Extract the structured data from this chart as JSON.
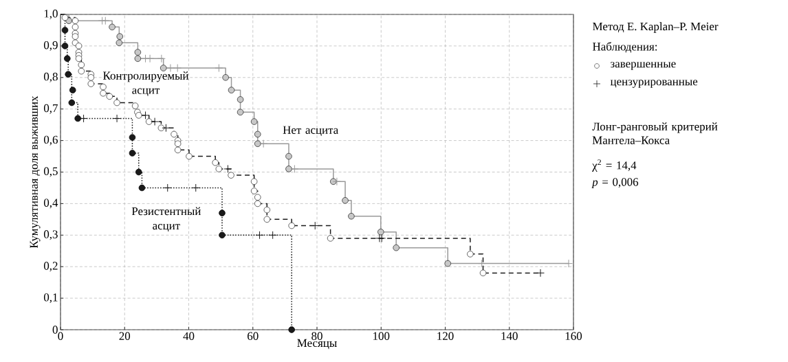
{
  "chart_data": {
    "type": "step",
    "xlabel": "Месяцы",
    "ylabel": "Кумулятивная доля выживших",
    "legend_title": "Наблюдения:",
    "xlim": [
      0,
      160
    ],
    "ylim": [
      0,
      1
    ],
    "xticks": [
      0,
      20,
      40,
      60,
      80,
      100,
      120,
      140,
      160
    ],
    "yticks": [
      0,
      {
        "value": 0.1,
        "label": "0,1"
      },
      {
        "value": 0.2,
        "label": "0,2"
      },
      {
        "value": 0.3,
        "label": "0,3"
      },
      {
        "value": 0.4,
        "label": "0,4"
      },
      {
        "value": 0.5,
        "label": "0,5"
      },
      {
        "value": 0.6,
        "label": "0,6"
      },
      {
        "value": 0.7,
        "label": "0,7"
      },
      {
        "value": 0.8,
        "label": "0,8"
      },
      {
        "value": 0.9,
        "label": "0,9"
      },
      {
        "value": 1.0,
        "label": "1,0"
      }
    ],
    "grid": true,
    "legend": "right",
    "series": [
      {
        "name": "Нет асцита",
        "color": "#999999",
        "line_style": "solid",
        "x": [
          0,
          2.6,
          13,
          14,
          16.1,
          18.3,
          24.1,
          26.5,
          27.9,
          31.5,
          32.1,
          34.3,
          36.5,
          49.4,
          51.5,
          53.3,
          56.1,
          60.4,
          61.5,
          63.3,
          71.2,
          73,
          85.1,
          86.2,
          88.8,
          90.7,
          99.9,
          104.7,
          120.8,
          131.4,
          158.5
        ],
        "values": [
          1.0,
          0.98,
          0.98,
          0.98,
          0.96,
          0.91,
          0.86,
          0.86,
          0.86,
          0.86,
          0.83,
          0.83,
          0.83,
          0.83,
          0.8,
          0.76,
          0.69,
          0.66,
          0.59,
          0.59,
          0.51,
          0.51,
          0.47,
          0.47,
          0.41,
          0.36,
          0.31,
          0.26,
          0.21,
          0.21,
          0.21
        ]
      },
      {
        "name": "Контролируемый асцит",
        "color": "#1a1a1a",
        "line_style": "dashed",
        "x": [
          0,
          1.4,
          4.6,
          5.7,
          6.5,
          9.5,
          13.3,
          15.3,
          17.6,
          23.3,
          24.0,
          24.4,
          26.5,
          27.6,
          29.4,
          31.4,
          32.9,
          35.4,
          36.6,
          40.1,
          48.3,
          49.4,
          52.2,
          53.2,
          60.4,
          61.5,
          64.4,
          72.1,
          79.4,
          84.2,
          99.5,
          100.2,
          127.8,
          131.8,
          149.7
        ],
        "values": [
          1.0,
          0.99,
          0.91,
          0.86,
          0.82,
          0.78,
          0.75,
          0.74,
          0.72,
          0.71,
          0.69,
          0.68,
          0.68,
          0.66,
          0.66,
          0.64,
          0.64,
          0.62,
          0.57,
          0.55,
          0.53,
          0.51,
          0.51,
          0.49,
          0.44,
          0.4,
          0.35,
          0.33,
          0.33,
          0.29,
          0.29,
          0.29,
          0.24,
          0.18,
          0.18
        ]
      },
      {
        "name": "Резистентный асцит",
        "color": "#1a1a1a",
        "line_style": "dotted",
        "x": [
          0,
          1.4,
          2.1,
          2.4,
          3.5,
          5.4,
          7.2,
          17.6,
          22.4,
          24.4,
          25.4,
          33.4,
          42.2,
          50.4,
          62.1,
          66.2,
          72.1
        ],
        "values": [
          1.0,
          0.9,
          0.86,
          0.81,
          0.72,
          0.67,
          0.67,
          0.67,
          0.56,
          0.5,
          0.45,
          0.45,
          0.45,
          0.3,
          0.3,
          0.3,
          0
        ]
      },
      {
        "type": "scatter",
        "name": "завершенные",
        "marker": "circle",
        "color": "#ffffff",
        "x": [
          2.6,
          16.1,
          18.5,
          18.3,
          24.1,
          24.1,
          32.1,
          51.5,
          53.3,
          56.1,
          56.1,
          60.4,
          61.5,
          61.5,
          71.2,
          71.2,
          85.1,
          88.8,
          90.7,
          99.9,
          104.7,
          120.8,
          1.4,
          4.6,
          4.6,
          4.6,
          4.6,
          4.6,
          5.7,
          5.7,
          5.7,
          5.7,
          6.5,
          6.5,
          9.5,
          9.5,
          9.5,
          13.3,
          13.3,
          15.3,
          17.6,
          23.3,
          24.0,
          24.4,
          27.6,
          31.4,
          35.4,
          36.6,
          36.6,
          36.6,
          40.1,
          48.3,
          49.4,
          53.2,
          60.4,
          60.4,
          61.5,
          61.5,
          64.4,
          64.4,
          72.1,
          84.2,
          127.8,
          131.8,
          1.4,
          1.4,
          2.1,
          2.4,
          3.8,
          3.5,
          5.4,
          22.4,
          22.4,
          24.4,
          25.4,
          50.4,
          50.4,
          72.1
        ],
        "values": [
          0.98,
          0.96,
          0.93,
          0.91,
          0.88,
          0.86,
          0.83,
          0.8,
          0.76,
          0.73,
          0.69,
          0.66,
          0.62,
          0.59,
          0.55,
          0.51,
          0.47,
          0.41,
          0.36,
          0.31,
          0.26,
          0.21,
          0.99,
          0.98,
          0.96,
          0.94,
          0.93,
          0.91,
          0.9,
          0.88,
          0.87,
          0.86,
          0.84,
          0.82,
          0.81,
          0.8,
          0.78,
          0.77,
          0.75,
          0.74,
          0.72,
          0.71,
          0.69,
          0.68,
          0.66,
          0.64,
          0.62,
          0.6,
          0.59,
          0.57,
          0.55,
          0.53,
          0.51,
          0.49,
          0.47,
          0.44,
          0.42,
          0.4,
          0.38,
          0.35,
          0.33,
          0.29,
          0.24,
          0.18,
          0.95,
          0.9,
          0.86,
          0.81,
          0.76,
          0.72,
          0.67,
          0.61,
          0.56,
          0.5,
          0.45,
          0.37,
          0.3,
          0
        ],
        "colors": [
          "#c8c8c8",
          "#c8c8c8",
          "#c8c8c8",
          "#c8c8c8",
          "#c8c8c8",
          "#c8c8c8",
          "#c8c8c8",
          "#c8c8c8",
          "#c8c8c8",
          "#c8c8c8",
          "#c8c8c8",
          "#c8c8c8",
          "#c8c8c8",
          "#c8c8c8",
          "#c8c8c8",
          "#c8c8c8",
          "#c8c8c8",
          "#c8c8c8",
          "#c8c8c8",
          "#c8c8c8",
          "#c8c8c8",
          "#c8c8c8",
          "#ffffff",
          "#ffffff",
          "#ffffff",
          "#ffffff",
          "#ffffff",
          "#ffffff",
          "#ffffff",
          "#ffffff",
          "#ffffff",
          "#ffffff",
          "#ffffff",
          "#ffffff",
          "#ffffff",
          "#ffffff",
          "#ffffff",
          "#ffffff",
          "#ffffff",
          "#ffffff",
          "#ffffff",
          "#ffffff",
          "#ffffff",
          "#ffffff",
          "#ffffff",
          "#ffffff",
          "#ffffff",
          "#ffffff",
          "#ffffff",
          "#ffffff",
          "#ffffff",
          "#ffffff",
          "#ffffff",
          "#ffffff",
          "#ffffff",
          "#ffffff",
          "#ffffff",
          "#ffffff",
          "#ffffff",
          "#ffffff",
          "#ffffff",
          "#ffffff",
          "#ffffff",
          "#ffffff",
          "#1a1a1a",
          "#1a1a1a",
          "#1a1a1a",
          "#1a1a1a",
          "#1a1a1a",
          "#1a1a1a",
          "#1a1a1a",
          "#1a1a1a",
          "#1a1a1a",
          "#1a1a1a",
          "#1a1a1a",
          "#1a1a1a",
          "#1a1a1a",
          "#1a1a1a"
        ]
      },
      {
        "type": "scatter",
        "name": "цензурированные",
        "marker": "cross",
        "color": "#1a1a1a",
        "x": [
          13,
          14,
          26.5,
          27.9,
          31.5,
          34.3,
          36.5,
          49.4,
          63.3,
          73,
          86.2,
          131.4,
          158.5,
          26.5,
          29.4,
          32.9,
          52.2,
          79.4,
          99.5,
          100.2,
          149.7,
          7.2,
          17.6,
          33.4,
          42.2,
          62.1,
          66.2
        ],
        "values": [
          0.98,
          0.98,
          0.86,
          0.86,
          0.86,
          0.83,
          0.83,
          0.83,
          0.59,
          0.51,
          0.47,
          0.21,
          0.21,
          0.68,
          0.66,
          0.64,
          0.51,
          0.33,
          0.29,
          0.29,
          0.18,
          0.67,
          0.67,
          0.45,
          0.45,
          0.3,
          0.3
        ],
        "colors": [
          "#999999",
          "#999999",
          "#999999",
          "#999999",
          "#999999",
          "#999999",
          "#999999",
          "#999999",
          "#999999",
          "#999999",
          "#999999",
          "#999999",
          "#999999",
          "#1a1a1a",
          "#1a1a1a",
          "#1a1a1a",
          "#1a1a1a",
          "#1a1a1a",
          "#1a1a1a",
          "#1a1a1a",
          "#1a1a1a",
          "#1a1a1a",
          "#1a1a1a",
          "#1a1a1a",
          "#1a1a1a",
          "#1a1a1a",
          "#1a1a1a"
        ]
      }
    ],
    "annotations": [
      "Метод E. Kaplan–P. Meier",
      "Лонг-ранговый критерий Мантела–Кокса",
      "χ$^{2}$ = 14,4",
      "*p* = 0,006"
    ]
  }
}
